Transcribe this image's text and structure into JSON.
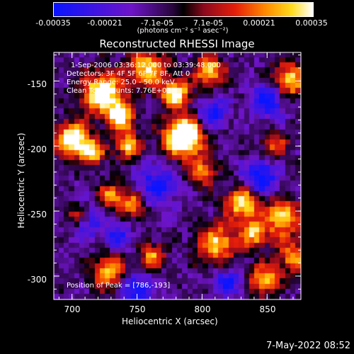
{
  "colorbar": {
    "ticks": [
      "-0.00035",
      "-0.00021",
      "-7.1e-05",
      "7.1e-05",
      "0.00021",
      "0.00035"
    ],
    "units_label": "(photons cm⁻² s⁻¹ asec⁻²)"
  },
  "title": "Reconstructed RHESSI Image",
  "annotations": {
    "time_range": "1-Sep-2006 03:36:12.000 to 03:39:48.000",
    "detectors": "Detectors: 3F 4F 5F 6F 7F 8F, Att 0",
    "energy": "Energy Range: 25.0 - 50.0 keV",
    "clean": "Clean    Total counts: 7.76E+03",
    "peak": "Position of Peak = [786,-193]"
  },
  "footer": {
    "timestamp": "7-May-2022 08:52"
  },
  "chart_data": {
    "type": "heatmap",
    "title": "Reconstructed RHESSI Image",
    "xlabel": "Heliocentric X (arcsec)",
    "ylabel": "Heliocentric Y (arcsec)",
    "xlim": [
      686,
      876
    ],
    "ylim": [
      -318,
      -128
    ],
    "xticks": [
      "700",
      "750",
      "800",
      "850"
    ],
    "yticks": [
      "-150",
      "-200",
      "-250",
      "-300"
    ],
    "xtick_values": [
      700,
      750,
      800,
      850
    ],
    "ytick_values": [
      -150,
      -200,
      -250,
      -300
    ],
    "color_range": [
      -0.00035,
      0.00035
    ],
    "peak": [
      786,
      -193
    ],
    "hot_spots": [
      [
        700,
        -195,
        2.2,
        9
      ],
      [
        704,
        -255,
        1.7,
        7
      ],
      [
        716,
        -205,
        1.6,
        7
      ],
      [
        724,
        -160,
        2.2,
        11
      ],
      [
        728,
        -297,
        1.6,
        9
      ],
      [
        730,
        -238,
        1.3,
        7
      ],
      [
        738,
        -178,
        2.0,
        7
      ],
      [
        744,
        -200,
        1.6,
        7
      ],
      [
        747,
        -245,
        1.5,
        7
      ],
      [
        758,
        -140,
        1.7,
        10
      ],
      [
        762,
        -285,
        1.3,
        7
      ],
      [
        786,
        -193,
        3.0,
        10
      ],
      [
        780,
        -160,
        1.9,
        8
      ],
      [
        800,
        -220,
        1.3,
        8
      ],
      [
        806,
        -142,
        1.7,
        8
      ],
      [
        812,
        -275,
        1.6,
        11
      ],
      [
        832,
        -244,
        1.9,
        9
      ],
      [
        840,
        -268,
        1.5,
        7
      ],
      [
        848,
        -303,
        1.6,
        8
      ],
      [
        856,
        -200,
        1.1,
        7
      ],
      [
        862,
        -255,
        1.7,
        10
      ],
      [
        870,
        -285,
        1.3,
        9
      ],
      [
        868,
        -150,
        1.6,
        10
      ]
    ],
    "cold_spots": [
      [
        708,
        -258,
        1.4,
        9
      ],
      [
        750,
        -310,
        1.2,
        8
      ],
      [
        766,
        -230,
        1.1,
        11
      ],
      [
        808,
        -175,
        1.1,
        8
      ],
      [
        845,
        -225,
        1.4,
        9
      ],
      [
        852,
        -165,
        1.3,
        9
      ],
      [
        820,
        -305,
        1.0,
        8
      ],
      [
        735,
        -270,
        1.0,
        7
      ]
    ]
  }
}
